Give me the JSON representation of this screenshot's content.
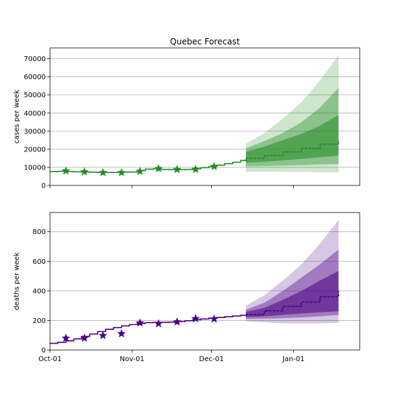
{
  "chart_data": [
    {
      "type": "line",
      "title": "Quebec Forecast",
      "xlabel": "",
      "ylabel": "cases per week",
      "xlim": [
        "2020-10-01",
        "2021-01-26"
      ],
      "ylim": [
        0,
        76000
      ],
      "x_ticks": [
        "2020-10-01",
        "2020-11-01",
        "2020-12-01",
        "2021-01-01"
      ],
      "x_tick_labels": [
        "",
        "",
        "",
        ""
      ],
      "y_ticks": [
        0,
        10000,
        20000,
        30000,
        40000,
        50000,
        60000,
        70000
      ],
      "y_tick_labels": [
        "0",
        "10000",
        "20000",
        "30000",
        "40000",
        "50000",
        "60000",
        "70000"
      ],
      "grid": "horizontal",
      "color": "#228B22",
      "fit_line": {
        "x": [
          "2020-10-01",
          "2020-10-04",
          "2020-10-07",
          "2020-10-10",
          "2020-10-13",
          "2020-10-16",
          "2020-10-19",
          "2020-10-22",
          "2020-10-25",
          "2020-10-28",
          "2020-10-31",
          "2020-11-03",
          "2020-11-06",
          "2020-11-09",
          "2020-11-12",
          "2020-11-15",
          "2020-11-18",
          "2020-11-21",
          "2020-11-24",
          "2020-11-27",
          "2020-11-30",
          "2020-12-03",
          "2020-12-06",
          "2020-12-09",
          "2020-12-12",
          "2020-12-14"
        ],
        "y": [
          7600,
          7800,
          7700,
          7500,
          7400,
          7300,
          7200,
          7200,
          7200,
          7300,
          7400,
          8200,
          9000,
          9200,
          8800,
          8700,
          8700,
          8800,
          9200,
          9800,
          10400,
          11200,
          12000,
          12800,
          13800,
          14500
        ]
      },
      "observed": {
        "x": [
          "2020-10-07",
          "2020-10-14",
          "2020-10-21",
          "2020-10-28",
          "2020-11-04",
          "2020-11-11",
          "2020-11-18",
          "2020-11-25",
          "2020-12-02"
        ],
        "y": [
          8000,
          7500,
          7100,
          7100,
          7800,
          9300,
          8800,
          8900,
          10500
        ]
      },
      "forecast": {
        "x": [
          "2020-12-14",
          "2020-12-21",
          "2020-12-28",
          "2021-01-04",
          "2021-01-11",
          "2021-01-18"
        ],
        "median": [
          15000,
          16500,
          18500,
          20500,
          22800,
          25000
        ],
        "band_50": [
          [
            12500,
            18500
          ],
          [
            13100,
            21500
          ],
          [
            13800,
            25000
          ],
          [
            14700,
            28500
          ],
          [
            15600,
            33000
          ],
          [
            16500,
            39000
          ]
        ],
        "band_80": [
          [
            10500,
            20500
          ],
          [
            10700,
            24500
          ],
          [
            11000,
            29000
          ],
          [
            11200,
            35000
          ],
          [
            11600,
            43000
          ],
          [
            11800,
            54000
          ]
        ],
        "band_95": [
          [
            7600,
            23000
          ],
          [
            7600,
            29000
          ],
          [
            7500,
            37000
          ],
          [
            7400,
            46000
          ],
          [
            7300,
            58000
          ],
          [
            7200,
            72000
          ]
        ]
      }
    },
    {
      "type": "line",
      "title": "",
      "xlabel": "",
      "ylabel": "deaths per week",
      "xlim": [
        "2020-10-01",
        "2021-01-26"
      ],
      "ylim": [
        0,
        930
      ],
      "x_ticks": [
        "2020-10-01",
        "2020-11-01",
        "2020-12-01",
        "2021-01-01"
      ],
      "x_tick_labels": [
        "Oct-01",
        "Nov-01",
        "Dec-01",
        "Jan-01"
      ],
      "y_ticks": [
        0,
        200,
        400,
        600,
        800
      ],
      "y_tick_labels": [
        "0",
        "200",
        "400",
        "600",
        "800"
      ],
      "grid": "horizontal",
      "color": "#4B0082",
      "fit_line": {
        "x": [
          "2020-10-01",
          "2020-10-04",
          "2020-10-07",
          "2020-10-10",
          "2020-10-13",
          "2020-10-16",
          "2020-10-19",
          "2020-10-22",
          "2020-10-25",
          "2020-10-28",
          "2020-10-31",
          "2020-11-03",
          "2020-11-06",
          "2020-11-09",
          "2020-11-12",
          "2020-11-15",
          "2020-11-18",
          "2020-11-21",
          "2020-11-24",
          "2020-11-27",
          "2020-11-30",
          "2020-12-03",
          "2020-12-06",
          "2020-12-09",
          "2020-12-12",
          "2020-12-14"
        ],
        "y": [
          45,
          52,
          62,
          75,
          92,
          108,
          125,
          140,
          152,
          163,
          172,
          180,
          185,
          187,
          187,
          188,
          192,
          198,
          205,
          210,
          215,
          220,
          225,
          230,
          235,
          240
        ]
      },
      "observed": {
        "x": [
          "2020-10-07",
          "2020-10-14",
          "2020-10-21",
          "2020-10-28",
          "2020-11-04",
          "2020-11-11",
          "2020-11-18",
          "2020-11-25",
          "2020-12-02"
        ],
        "y": [
          80,
          80,
          98,
          110,
          183,
          178,
          190,
          212,
          210
        ]
      },
      "forecast": {
        "x": [
          "2020-12-14",
          "2020-12-21",
          "2020-12-28",
          "2021-01-04",
          "2021-01-11",
          "2021-01-18"
        ],
        "median": [
          240,
          265,
          295,
          325,
          360,
          400
        ],
        "band_50": [
          [
            222,
            258
          ],
          [
            228,
            285
          ],
          [
            237,
            340
          ],
          [
            247,
            400
          ],
          [
            255,
            470
          ],
          [
            262,
            535
          ]
        ],
        "band_80": [
          [
            210,
            272
          ],
          [
            212,
            320
          ],
          [
            215,
            400
          ],
          [
            220,
            490
          ],
          [
            228,
            580
          ],
          [
            238,
            680
          ]
        ],
        "band_95": [
          [
            195,
            300
          ],
          [
            188,
            370
          ],
          [
            180,
            470
          ],
          [
            180,
            580
          ],
          [
            180,
            720
          ],
          [
            185,
            880
          ]
        ]
      }
    }
  ]
}
